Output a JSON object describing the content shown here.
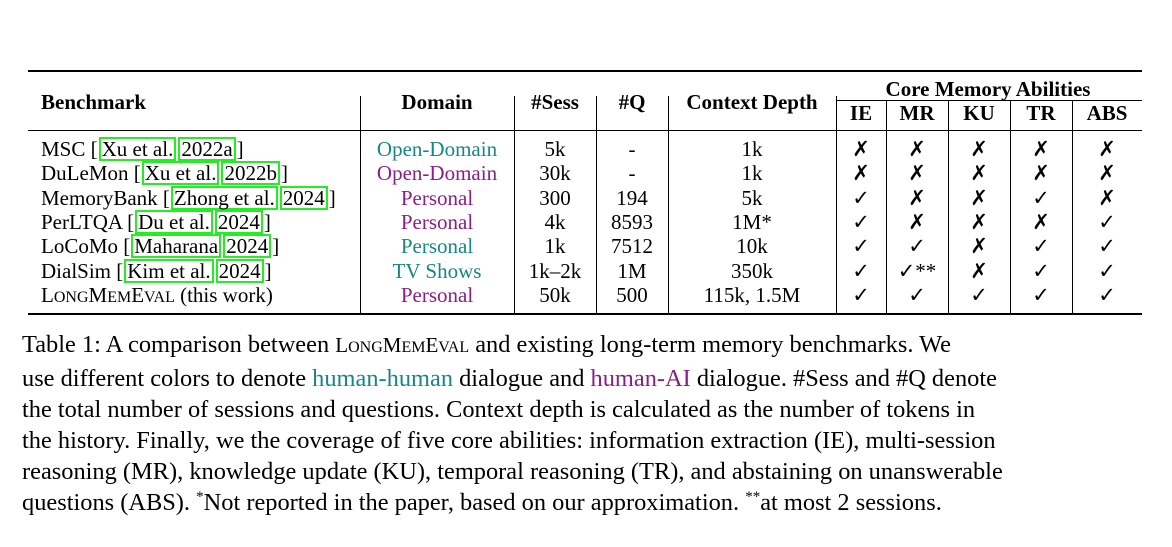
{
  "table": {
    "headers": {
      "benchmark": "Benchmark",
      "domain": "Domain",
      "sess": "#Sess",
      "q": "#Q",
      "context_depth": "Context Depth",
      "core_group": "Core Memory Abilities",
      "ie": "IE",
      "mr": "MR",
      "ku": "KU",
      "tr": "TR",
      "abs": "ABS"
    },
    "rows": [
      {
        "name": "MSC [",
        "cite1": "Xu et al.",
        "cite2": "2022a",
        "close": "]",
        "domain": "Open-Domain",
        "domain_color": "#1a8585",
        "sess": "5k",
        "q": "-",
        "depth": "1k",
        "ie": "✗",
        "mr": "✗",
        "ku": "✗",
        "tr": "✗",
        "abs": "✗"
      },
      {
        "name": "DuLeMon [",
        "cite1": "Xu et al.",
        "cite2": "2022b",
        "close": "]",
        "domain": "Open-Domain",
        "domain_color": "#8a1e86",
        "sess": "30k",
        "q": "-",
        "depth": "1k",
        "ie": "✗",
        "mr": "✗",
        "ku": "✗",
        "tr": "✗",
        "abs": "✗"
      },
      {
        "name": "MemoryBank [",
        "cite1": "Zhong et al.",
        "cite2": "2024",
        "close": "]",
        "domain": "Personal",
        "domain_color": "#8a1e86",
        "sess": "300",
        "q": "194",
        "depth": "5k",
        "ie": "✓",
        "mr": "✗",
        "ku": "✗",
        "tr": "✓",
        "abs": "✗"
      },
      {
        "name": "PerLTQA [",
        "cite1": "Du et al.",
        "cite2": "2024",
        "close": "]",
        "domain": "Personal",
        "domain_color": "#8a1e86",
        "sess": "4k",
        "q": "8593",
        "depth": "1M*",
        "ie": "✓",
        "mr": "✗",
        "ku": "✗",
        "tr": "✗",
        "abs": "✓"
      },
      {
        "name": "LoCoMo [",
        "cite1": "Maharana",
        "cite2": "2024",
        "close": "]",
        "domain": "Personal",
        "domain_color": "#1a8585",
        "sess": "1k",
        "q": "7512",
        "depth": "10k",
        "ie": "✓",
        "mr": "✓",
        "ku": "✗",
        "tr": "✓",
        "abs": "✓"
      },
      {
        "name": "DialSim [",
        "cite1": "Kim et al.",
        "cite2": "2024",
        "close": "]",
        "domain": "TV Shows",
        "domain_color": "#1a8585",
        "sess": "1k–2k",
        "q": "1M",
        "depth": "350k",
        "ie": "✓",
        "mr": "✓**",
        "ku": "✗",
        "tr": "✓",
        "abs": "✓"
      },
      {
        "name_sc": "LONGMEMEVAL",
        "name_suffix": " (this work)",
        "domain": "Personal",
        "domain_color": "#8a1e86",
        "sess": "50k",
        "q": "500",
        "depth": "115k, 1.5M",
        "ie": "✓",
        "mr": "✓",
        "ku": "✓",
        "tr": "✓",
        "abs": "✓"
      }
    ]
  },
  "caption": {
    "l1a": "Table 1: A comparison between ",
    "l1sc": "LONGMEMEVAL",
    "l1b": " and existing long-term memory benchmarks. We",
    "l2a": "use different colors to denote ",
    "l2hh": "human-human",
    "l2b": " dialogue and ",
    "l2ha": "human-AI",
    "l2c": " dialogue. #Sess and #Q denote",
    "l3": "the total number of sessions and questions. Context depth is calculated as the number of tokens in",
    "l4": "the history. Finally, we the coverage of five core abilities: information extraction (IE), multi-session",
    "l5": "reasoning (MR), knowledge update (KU), temporal reasoning (TR), and abstaining on unanswerable",
    "l6a": "questions (ABS). ",
    "l6sup1": "*",
    "l6b": "Not reported in the paper, based on our approximation. ",
    "l6sup2": "**",
    "l6c": "at most 2 sessions."
  },
  "colors": {
    "human_human": "#1a8585",
    "human_ai": "#8a1e86",
    "cite_box": "#22ee22"
  }
}
